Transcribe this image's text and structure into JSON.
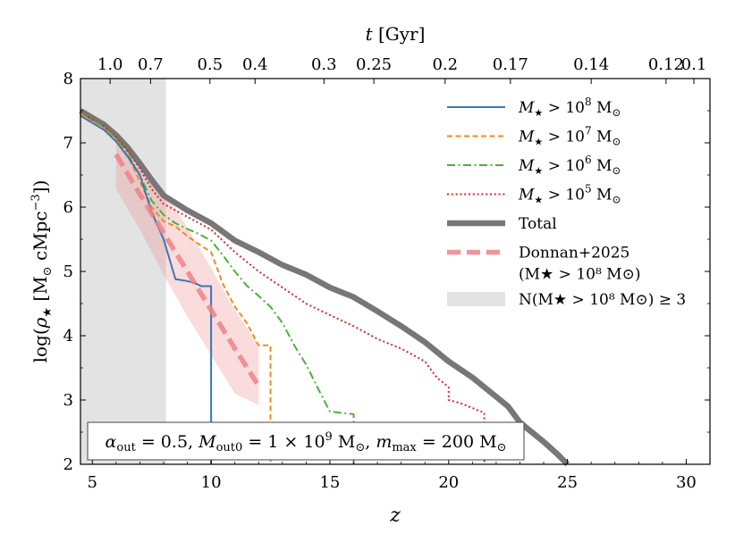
{
  "chart_data": {
    "type": "line",
    "xlabel": "z",
    "ylabel": "log(ρ⋆ [M⊙ cMpc⁻³])",
    "top_axis_label": "t [Gyr]",
    "xlim": [
      4.5,
      31
    ],
    "ylim": [
      2,
      8
    ],
    "x_ticks": [
      5,
      10,
      15,
      20,
      25,
      30
    ],
    "y_ticks": [
      2,
      3,
      4,
      5,
      6,
      7,
      8
    ],
    "top_ticks": [
      {
        "label": "1.0",
        "z": 5.75
      },
      {
        "label": "0.7",
        "z": 7.45
      },
      {
        "label": "0.5",
        "z": 9.95
      },
      {
        "label": "0.4",
        "z": 11.85
      },
      {
        "label": "0.3",
        "z": 14.75
      },
      {
        "label": "0.25",
        "z": 16.85
      },
      {
        "label": "0.2",
        "z": 19.85
      },
      {
        "label": "0.17",
        "z": 22.6
      },
      {
        "label": "0.14",
        "z": 26.0
      },
      {
        "label": "0.12",
        "z": 29.15
      },
      {
        "label": "0.1",
        "z": 35.0
      }
    ],
    "shaded_region": {
      "label": "N(M⋆ > 10⁸ M⊙) ≥ 3",
      "x": [
        4.5,
        8.1
      ],
      "color": "#e3e3e3"
    },
    "series": [
      {
        "name": "M⋆ > 10⁸ M⊙",
        "color": "#3a76b8",
        "style": "solid",
        "points": [
          [
            4.5,
            7.42
          ],
          [
            5.0,
            7.31
          ],
          [
            5.5,
            7.2
          ],
          [
            6.0,
            7.02
          ],
          [
            6.5,
            6.78
          ],
          [
            7.0,
            6.5
          ],
          [
            7.5,
            5.92
          ],
          [
            8.0,
            5.5
          ],
          [
            8.5,
            4.88
          ],
          [
            9.0,
            4.85
          ],
          [
            9.3,
            4.82
          ],
          [
            9.6,
            4.77
          ],
          [
            10.0,
            4.77
          ],
          [
            10.0,
            2.0
          ]
        ]
      },
      {
        "name": "M⋆ > 10⁷ M⊙",
        "color": "#f18a1e",
        "style": "dashed",
        "points": [
          [
            4.5,
            7.45
          ],
          [
            5.0,
            7.33
          ],
          [
            5.5,
            7.22
          ],
          [
            6.0,
            7.04
          ],
          [
            6.5,
            6.8
          ],
          [
            7.0,
            6.4
          ],
          [
            7.5,
            6.0
          ],
          [
            8.0,
            5.78
          ],
          [
            8.5,
            5.7
          ],
          [
            9.0,
            5.55
          ],
          [
            9.5,
            5.42
          ],
          [
            10.0,
            5.3
          ],
          [
            10.5,
            4.8
          ],
          [
            11.0,
            4.45
          ],
          [
            11.5,
            4.2
          ],
          [
            12.0,
            3.85
          ],
          [
            12.5,
            3.85
          ],
          [
            12.5,
            2.0
          ]
        ]
      },
      {
        "name": "M⋆ > 10⁶ M⊙",
        "color": "#4caf3d",
        "style": "dashdot",
        "points": [
          [
            4.5,
            7.46
          ],
          [
            5.0,
            7.35
          ],
          [
            5.5,
            7.25
          ],
          [
            6.0,
            7.07
          ],
          [
            6.5,
            6.82
          ],
          [
            7.0,
            6.5
          ],
          [
            7.5,
            6.1
          ],
          [
            8.0,
            5.88
          ],
          [
            8.5,
            5.75
          ],
          [
            9.0,
            5.66
          ],
          [
            9.5,
            5.58
          ],
          [
            10.0,
            5.48
          ],
          [
            10.5,
            5.25
          ],
          [
            11.0,
            5.0
          ],
          [
            11.5,
            4.78
          ],
          [
            12.0,
            4.62
          ],
          [
            12.5,
            4.45
          ],
          [
            13.0,
            4.2
          ],
          [
            13.5,
            3.85
          ],
          [
            14.0,
            3.55
          ],
          [
            14.5,
            3.18
          ],
          [
            15.0,
            2.82
          ],
          [
            15.5,
            2.8
          ],
          [
            16.0,
            2.78
          ],
          [
            16.0,
            2.0
          ]
        ]
      },
      {
        "name": "M⋆ > 10⁵ M⊙",
        "color": "#d62728",
        "style": "dotted",
        "points": [
          [
            4.5,
            7.47
          ],
          [
            5.0,
            7.36
          ],
          [
            5.5,
            7.26
          ],
          [
            6.0,
            7.1
          ],
          [
            6.5,
            6.88
          ],
          [
            7.0,
            6.6
          ],
          [
            7.5,
            6.28
          ],
          [
            8.0,
            6.05
          ],
          [
            9.0,
            5.85
          ],
          [
            10.0,
            5.65
          ],
          [
            11.0,
            5.3
          ],
          [
            12.0,
            5.0
          ],
          [
            13.0,
            4.75
          ],
          [
            14.0,
            4.5
          ],
          [
            15.0,
            4.32
          ],
          [
            16.0,
            4.15
          ],
          [
            17.0,
            3.95
          ],
          [
            18.0,
            3.8
          ],
          [
            19.0,
            3.6
          ],
          [
            19.5,
            3.35
          ],
          [
            20.0,
            3.2
          ],
          [
            20.0,
            3.0
          ],
          [
            20.5,
            2.95
          ],
          [
            21.5,
            2.8
          ],
          [
            21.5,
            2.0
          ]
        ]
      },
      {
        "name": "Total",
        "color": "#777777",
        "style": "thick",
        "points": [
          [
            4.5,
            7.5
          ],
          [
            5.0,
            7.39
          ],
          [
            5.5,
            7.28
          ],
          [
            6.0,
            7.12
          ],
          [
            6.5,
            6.92
          ],
          [
            7.0,
            6.68
          ],
          [
            7.5,
            6.42
          ],
          [
            8.0,
            6.18
          ],
          [
            9.0,
            5.95
          ],
          [
            10.0,
            5.75
          ],
          [
            11.0,
            5.48
          ],
          [
            12.0,
            5.3
          ],
          [
            13.0,
            5.1
          ],
          [
            14.0,
            4.95
          ],
          [
            15.0,
            4.75
          ],
          [
            16.0,
            4.6
          ],
          [
            17.0,
            4.38
          ],
          [
            18.0,
            4.15
          ],
          [
            19.0,
            3.9
          ],
          [
            20.0,
            3.6
          ],
          [
            21.0,
            3.35
          ],
          [
            22.0,
            3.05
          ],
          [
            22.5,
            2.9
          ],
          [
            23.0,
            2.65
          ],
          [
            24.0,
            2.35
          ],
          [
            24.6,
            2.15
          ],
          [
            25.0,
            2.0
          ]
        ]
      },
      {
        "name": "Donnan+2025 (M⋆ > 10⁸ M⊙)",
        "color": "#ee8386",
        "style": "thickdashed",
        "points": [
          [
            6.0,
            6.82
          ],
          [
            7.0,
            6.2
          ],
          [
            8.0,
            5.6
          ],
          [
            9.0,
            5.0
          ],
          [
            10.0,
            4.4
          ],
          [
            11.0,
            3.8
          ],
          [
            12.0,
            3.22
          ]
        ],
        "band_upper": [
          [
            6.0,
            7.0
          ],
          [
            7.0,
            6.7
          ],
          [
            8.0,
            6.28
          ],
          [
            9.0,
            5.68
          ],
          [
            10.0,
            5.05
          ],
          [
            11.0,
            4.4
          ],
          [
            12.0,
            3.85
          ]
        ],
        "band_lower": [
          [
            6.0,
            6.28
          ],
          [
            7.0,
            5.65
          ],
          [
            8.0,
            4.95
          ],
          [
            9.0,
            4.3
          ],
          [
            10.0,
            3.7
          ],
          [
            11.0,
            3.1
          ],
          [
            12.0,
            2.92
          ]
        ]
      }
    ],
    "legend_position": "upper right",
    "legend": [
      {
        "key": "s8",
        "sym": "solid",
        "color": "#3a76b8",
        "pre": "M",
        "sub": "★",
        "mid": " > 10",
        "sup": "8",
        "post": " M",
        "sun": "⊙"
      },
      {
        "key": "s7",
        "sym": "dashed",
        "color": "#f18a1e",
        "pre": "M",
        "sub": "★",
        "mid": " > 10",
        "sup": "7",
        "post": " M",
        "sun": "⊙"
      },
      {
        "key": "s6",
        "sym": "dashdot",
        "color": "#4caf3d",
        "pre": "M",
        "sub": "★",
        "mid": " > 10",
        "sup": "6",
        "post": " M",
        "sun": "⊙"
      },
      {
        "key": "s5",
        "sym": "dotted",
        "color": "#d62728",
        "pre": "M",
        "sub": "★",
        "mid": " > 10",
        "sup": "5",
        "post": " M",
        "sun": "⊙"
      },
      {
        "key": "tot",
        "sym": "thick",
        "color": "#777777",
        "text": "Total"
      },
      {
        "key": "don",
        "sym": "thickdashed",
        "color": "#ee8386",
        "text": "Donnan+2025",
        "text2": "(M★ > 10⁸ M⊙)"
      },
      {
        "key": "reg",
        "sym": "patch",
        "color": "#e3e3e3",
        "text": "N(M★ > 10⁸ M⊙) ≥ 3"
      }
    ],
    "annotation": "αout = 0.5, Mout0 = 1 × 10⁹ M⊙, mmax = 200 M⊙"
  }
}
